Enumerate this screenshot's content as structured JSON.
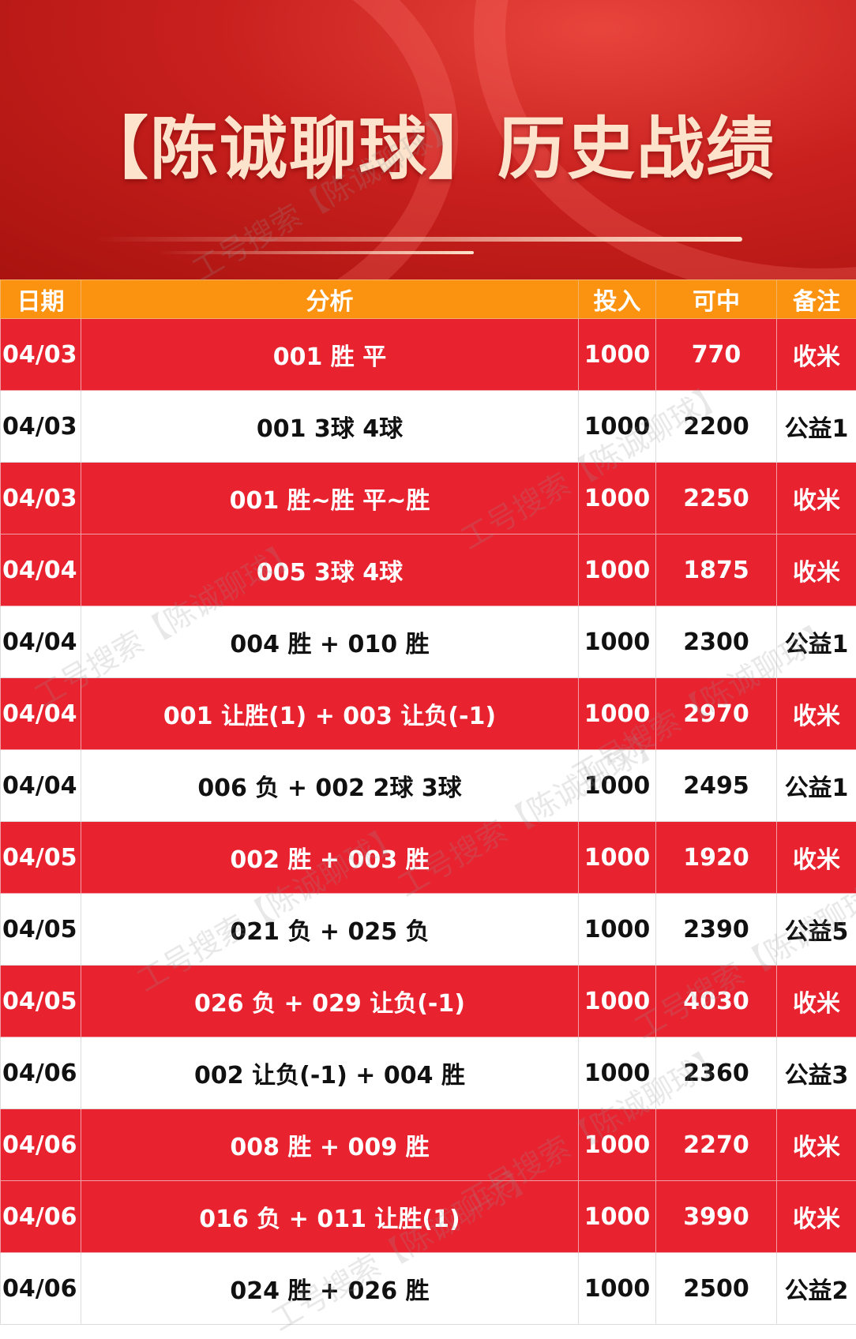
{
  "title": "【陈诚聊球】历史战绩",
  "watermark": "工号搜索【陈诚聊球】",
  "colors": {
    "header_bg": "#fb9310",
    "red_row": "#e8222f",
    "white_row": "#ffffff",
    "title_text": "#fde3cc"
  },
  "table": {
    "headers": [
      "日期",
      "分析",
      "投入",
      "可中",
      "备注"
    ],
    "rows": [
      {
        "date": "04/03",
        "analysis": "001 胜 平",
        "stake": "1000",
        "payout": "770",
        "note": "收米",
        "style": "red"
      },
      {
        "date": "04/03",
        "analysis": "001 3球 4球",
        "stake": "1000",
        "payout": "2200",
        "note": "公益1",
        "style": "white"
      },
      {
        "date": "04/03",
        "analysis": "001 胜~胜 平~胜",
        "stake": "1000",
        "payout": "2250",
        "note": "收米",
        "style": "red"
      },
      {
        "date": "04/04",
        "analysis": "005 3球 4球",
        "stake": "1000",
        "payout": "1875",
        "note": "收米",
        "style": "red"
      },
      {
        "date": "04/04",
        "analysis": "004 胜 + 010 胜",
        "stake": "1000",
        "payout": "2300",
        "note": "公益1",
        "style": "white"
      },
      {
        "date": "04/04",
        "analysis": "001 让胜(1) + 003 让负(-1)",
        "stake": "1000",
        "payout": "2970",
        "note": "收米",
        "style": "red"
      },
      {
        "date": "04/04",
        "analysis": "006 负 + 002 2球 3球",
        "stake": "1000",
        "payout": "2495",
        "note": "公益1",
        "style": "white"
      },
      {
        "date": "04/05",
        "analysis": "002 胜 + 003 胜",
        "stake": "1000",
        "payout": "1920",
        "note": "收米",
        "style": "red"
      },
      {
        "date": "04/05",
        "analysis": "021 负 + 025 负",
        "stake": "1000",
        "payout": "2390",
        "note": "公益5",
        "style": "white"
      },
      {
        "date": "04/05",
        "analysis": "026 负 + 029 让负(-1)",
        "stake": "1000",
        "payout": "4030",
        "note": "收米",
        "style": "red"
      },
      {
        "date": "04/06",
        "analysis": "002 让负(-1) + 004 胜",
        "stake": "1000",
        "payout": "2360",
        "note": "公益3",
        "style": "white"
      },
      {
        "date": "04/06",
        "analysis": "008 胜 + 009 胜",
        "stake": "1000",
        "payout": "2270",
        "note": "收米",
        "style": "red"
      },
      {
        "date": "04/06",
        "analysis": "016 负 + 011 让胜(1)",
        "stake": "1000",
        "payout": "3990",
        "note": "收米",
        "style": "red"
      },
      {
        "date": "04/06",
        "analysis": "024 胜 + 026 胜",
        "stake": "1000",
        "payout": "2500",
        "note": "公益2",
        "style": "white"
      }
    ]
  }
}
